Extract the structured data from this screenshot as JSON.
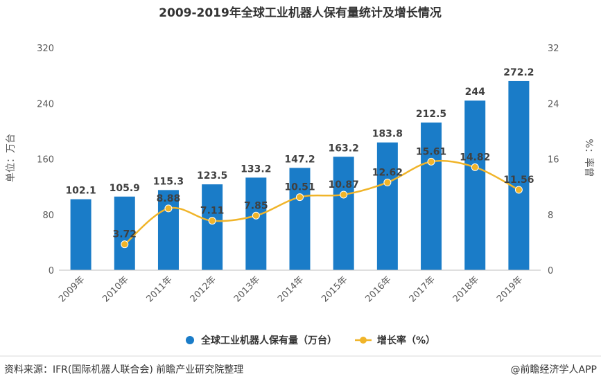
{
  "chart_data": {
    "type": "bar",
    "title": "2009-2019年全球工业机器人保有量统计及增长情况",
    "categories": [
      "2009年",
      "2010年",
      "2011年",
      "2012年",
      "2013年",
      "2014年",
      "2015年",
      "2016年",
      "2017年",
      "2018年",
      "2019年"
    ],
    "series": [
      {
        "name": "全球工业机器人保有量（万台）",
        "type": "bar",
        "axis": "left",
        "values": [
          102.1,
          105.9,
          115.3,
          123.5,
          133.2,
          147.2,
          163.2,
          183.8,
          212.5,
          244,
          272.2
        ],
        "value_labels": [
          "102.1",
          "105.9",
          "115.3",
          "123.5",
          "133.2",
          "147.2",
          "163.2",
          "183.8",
          "212.5",
          "244",
          "272.2"
        ]
      },
      {
        "name": "增长率（%）",
        "type": "line",
        "axis": "right",
        "values": [
          null,
          3.72,
          8.88,
          7.11,
          7.85,
          10.51,
          10.87,
          12.62,
          15.61,
          14.82,
          11.56
        ],
        "value_labels": [
          "",
          "3.72",
          "8.88",
          "7.11",
          "7.85",
          "10.51",
          "10.87",
          "12.62",
          "15.61",
          "14.82",
          "11.56"
        ]
      }
    ],
    "ylabel": "单位：万台",
    "y2label": "%：率曾",
    "ylim": [
      0,
      320
    ],
    "y2lim": [
      0,
      32
    ],
    "yticks": [
      "0",
      "80",
      "160",
      "240",
      "320"
    ],
    "y2ticks": [
      "0",
      "8",
      "16",
      "24",
      "32"
    ],
    "grid": false,
    "legend_position": "bottom",
    "colors": {
      "bar": "#1a7cc8",
      "line": "#f0b429"
    }
  },
  "footer": {
    "source": "资料来源：IFR(国际机器人联合会) 前瞻产业研究院整理",
    "credit": "@前瞻经济学人APP"
  }
}
